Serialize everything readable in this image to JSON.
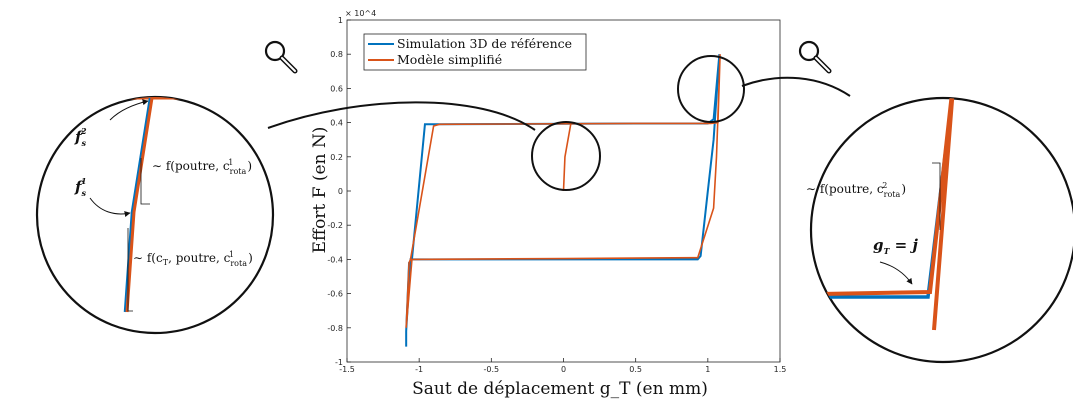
{
  "chart_data": {
    "type": "line",
    "xlabel": "Saut de déplacement g_T (en mm)",
    "ylabel": "Effort F (en N)",
    "y_multiplier": "× 10^4",
    "xlim": [
      -1.5,
      1.5
    ],
    "ylim": [
      -1,
      1
    ],
    "xticks": [
      "-1.5",
      "-1",
      "-0.5",
      "0",
      "0.5",
      "1",
      "1.5"
    ],
    "yticks": [
      "-1",
      "-0.8",
      "-0.6",
      "-0.4",
      "-0.2",
      "0",
      "0.2",
      "0.4",
      "0.6",
      "0.8",
      "1"
    ],
    "legend_position": "top-left",
    "grid": false,
    "series": [
      {
        "name": "Simulation 3D de référence",
        "color": "#0072BD",
        "points": [
          [
            -1.09,
            -0.91
          ],
          [
            -1.09,
            -0.82
          ],
          [
            -1.07,
            -0.42
          ],
          [
            -1.05,
            -0.4
          ],
          [
            -0.96,
            0.39
          ],
          [
            -0.9,
            0.39
          ],
          [
            0.5,
            0.395
          ],
          [
            1.0,
            0.395
          ],
          [
            1.04,
            0.42
          ],
          [
            1.08,
            0.8
          ],
          [
            1.04,
            0.3
          ],
          [
            1.0,
            0.0
          ],
          [
            0.95,
            -0.38
          ],
          [
            0.93,
            -0.4
          ],
          [
            0.0,
            -0.4
          ],
          [
            -1.06,
            -0.4
          ],
          [
            -1.09,
            -0.82
          ]
        ]
      },
      {
        "name": "Modèle simplifié",
        "color": "#D95319",
        "points": [
          [
            -1.09,
            -0.8
          ],
          [
            -1.07,
            -0.42
          ],
          [
            -1.06,
            -0.4
          ],
          [
            -0.9,
            0.38
          ],
          [
            -0.86,
            0.39
          ],
          [
            0.5,
            0.395
          ],
          [
            1.02,
            0.395
          ],
          [
            1.07,
            0.4
          ],
          [
            1.085,
            0.8
          ],
          [
            1.06,
            0.2
          ],
          [
            1.04,
            -0.1
          ],
          [
            0.93,
            -0.39
          ],
          [
            0.9,
            -0.39
          ],
          [
            0.0,
            -0.395
          ],
          [
            -1.05,
            -0.4
          ],
          [
            -1.09,
            -0.8
          ]
        ]
      },
      {
        "name": "",
        "color": "#D95319",
        "points": [
          [
            0.0,
            0.0
          ],
          [
            0.01,
            0.2
          ],
          [
            0.05,
            0.39
          ]
        ]
      }
    ],
    "annotations": {
      "left_f2": "f",
      "left_f2_sub": "s",
      "left_f2_sup": "2",
      "left_f1": "f",
      "left_f1_sub": "s",
      "left_f1_sup": "1",
      "left_slope1": "∼ f(poutre, c",
      "left_slope1_sub": "rota",
      "left_slope1_sup": "1",
      "left_slope2": "∼ f(c",
      "left_slope2_mid": ", poutre, c",
      "left_slope2_sub_T": "T",
      "left_slope2_sub": "rota",
      "left_slope2_sup": "1",
      "right_slope": "∼ f(poutre, c",
      "right_slope_sub": "rota",
      "right_slope_sup": "2",
      "right_gt": "g",
      "right_gt_sub": "T",
      "right_gt_eq": " = j"
    }
  },
  "icons": [
    "magnifier-icon",
    "magnifier-icon"
  ]
}
